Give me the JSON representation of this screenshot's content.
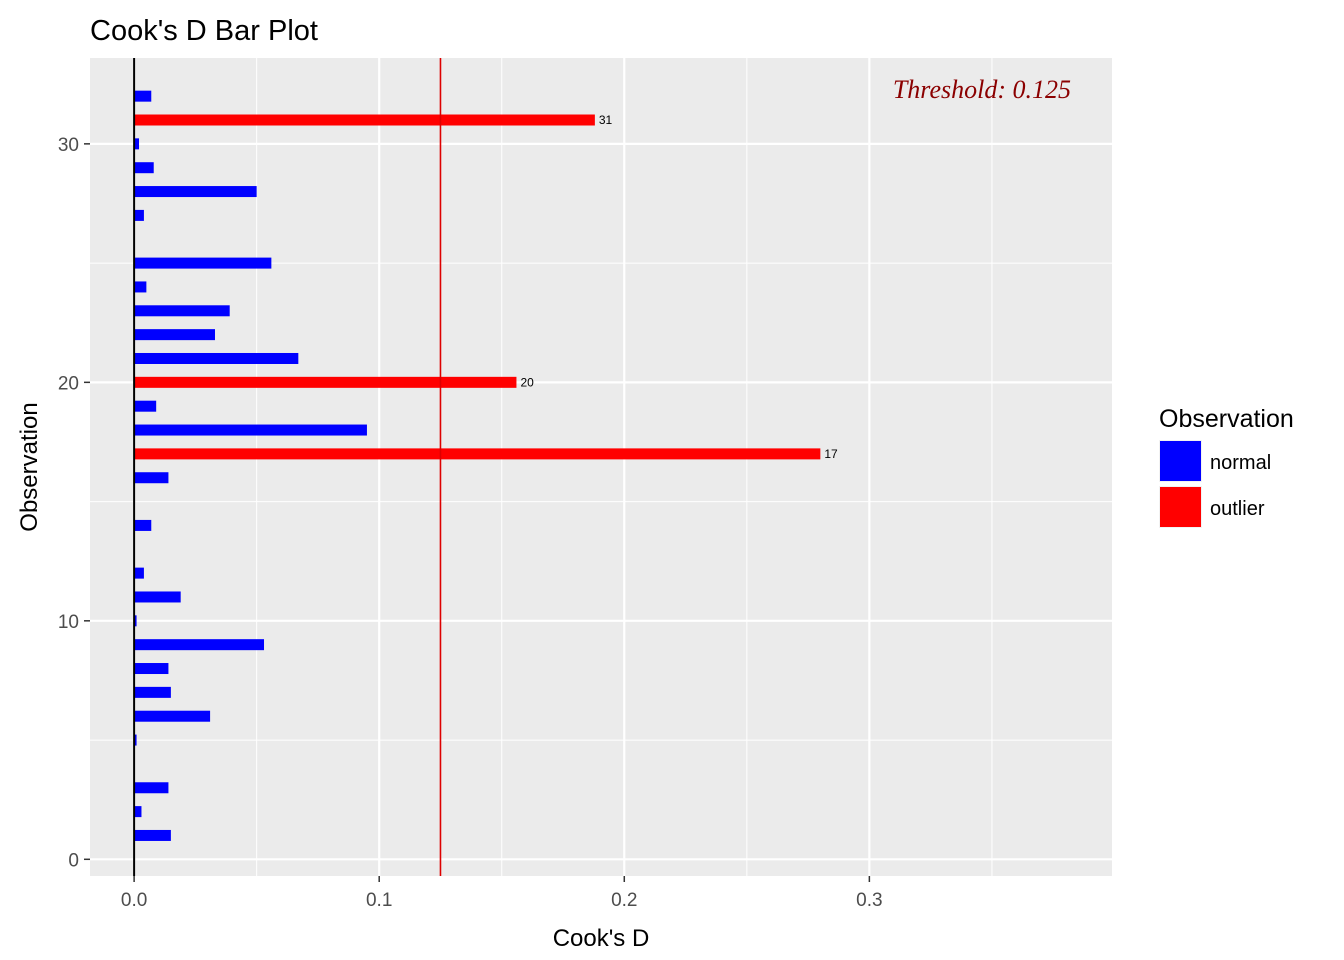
{
  "chart_data": {
    "type": "bar",
    "orientation": "horizontal",
    "title": "Cook's D Bar Plot",
    "xlabel": "Cook's D",
    "ylabel": "Observation",
    "xlim": [
      -0.018,
      0.399
    ],
    "ylim": [
      -0.7,
      33.6
    ],
    "x_ticks": [
      0.0,
      0.1,
      0.2,
      0.3
    ],
    "x_tick_labels": [
      "0.0",
      "0.1",
      "0.2",
      "0.3"
    ],
    "x_minor_ticks": [
      0.05,
      0.15,
      0.25,
      0.35
    ],
    "y_ticks": [
      0,
      10,
      20,
      30
    ],
    "y_tick_labels": [
      "0",
      "10",
      "20",
      "30"
    ],
    "y_minor_ticks": [
      5,
      15,
      25
    ],
    "grid": true,
    "threshold": {
      "value": 0.125,
      "label": "Threshold: 0.125",
      "line_color": "#dd0000",
      "text_color": "#8b0000"
    },
    "legend": {
      "title": "Observation",
      "position": "right",
      "entries": [
        {
          "label": "normal",
          "color": "#0000ff"
        },
        {
          "label": "outlier",
          "color": "#ff0000"
        }
      ]
    },
    "series": [
      {
        "name": "normal",
        "color": "#0000ff",
        "points": [
          {
            "obs": 1,
            "value": 0.015
          },
          {
            "obs": 2,
            "value": 0.003
          },
          {
            "obs": 3,
            "value": 0.014
          },
          {
            "obs": 4,
            "value": 0.0
          },
          {
            "obs": 5,
            "value": 0.001
          },
          {
            "obs": 6,
            "value": 0.031
          },
          {
            "obs": 7,
            "value": 0.015
          },
          {
            "obs": 8,
            "value": 0.014
          },
          {
            "obs": 9,
            "value": 0.053
          },
          {
            "obs": 10,
            "value": 0.001
          },
          {
            "obs": 11,
            "value": 0.019
          },
          {
            "obs": 12,
            "value": 0.004
          },
          {
            "obs": 13,
            "value": 0.0
          },
          {
            "obs": 14,
            "value": 0.007
          },
          {
            "obs": 15,
            "value": 0.0
          },
          {
            "obs": 16,
            "value": 0.014
          },
          {
            "obs": 18,
            "value": 0.095
          },
          {
            "obs": 19,
            "value": 0.009
          },
          {
            "obs": 21,
            "value": 0.067
          },
          {
            "obs": 22,
            "value": 0.033
          },
          {
            "obs": 23,
            "value": 0.039
          },
          {
            "obs": 24,
            "value": 0.005
          },
          {
            "obs": 25,
            "value": 0.056
          },
          {
            "obs": 26,
            "value": 0.0
          },
          {
            "obs": 27,
            "value": 0.004
          },
          {
            "obs": 28,
            "value": 0.05
          },
          {
            "obs": 29,
            "value": 0.008
          },
          {
            "obs": 30,
            "value": 0.002
          },
          {
            "obs": 32,
            "value": 0.007
          }
        ]
      },
      {
        "name": "outlier",
        "color": "#ff0000",
        "points": [
          {
            "obs": 17,
            "value": 0.28,
            "label": "17"
          },
          {
            "obs": 20,
            "value": 0.156,
            "label": "20"
          },
          {
            "obs": 31,
            "value": 0.188,
            "label": "31"
          }
        ]
      }
    ]
  }
}
